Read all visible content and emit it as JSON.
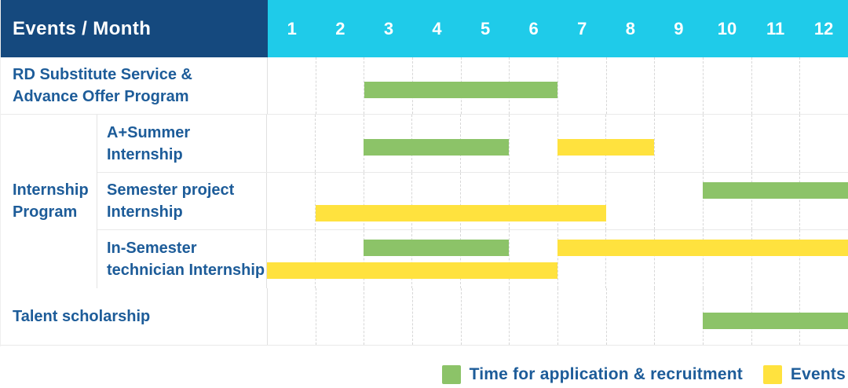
{
  "header": {
    "title": "Events / Month",
    "months": [
      "1",
      "2",
      "3",
      "4",
      "5",
      "6",
      "7",
      "8",
      "9",
      "10",
      "11",
      "12"
    ]
  },
  "colors": {
    "navy": "#15497E",
    "cyan": "#1FCBE9",
    "green": "#8CC368",
    "yellow": "#FFE23E",
    "text_blue": "#1D5C99"
  },
  "rows": {
    "rd": {
      "lines": [
        "RD Substitute Service &",
        "Advance Offer Program"
      ],
      "bars": {
        "b0": {
          "color": "green",
          "start": 3,
          "end": 6,
          "lane": "single"
        }
      }
    },
    "group_label": {
      "lines": [
        "Internship",
        "Program"
      ]
    },
    "a_summer": {
      "lines": [
        "A+Summer",
        "Internship"
      ],
      "bars": {
        "b0": {
          "color": "green",
          "start": 3,
          "end": 5,
          "lane": "single"
        },
        "b1": {
          "color": "yellow",
          "start": 7,
          "end": 8,
          "lane": "single"
        }
      }
    },
    "semester_project": {
      "lines": [
        "Semester project",
        "Internship"
      ],
      "bars": {
        "b0": {
          "color": "green",
          "start": 10,
          "end": 12,
          "lane": "top"
        },
        "b1": {
          "color": "yellow",
          "start": 2,
          "end": 7,
          "lane": "bottom"
        }
      }
    },
    "in_semester": {
      "lines": [
        "In-Semester",
        "technician Internship"
      ],
      "bars": {
        "b0": {
          "color": "green",
          "start": 3,
          "end": 5,
          "lane": "top"
        },
        "b1": {
          "color": "yellow",
          "start": 7,
          "end": 12,
          "lane": "top"
        },
        "b2": {
          "color": "yellow",
          "start": 1,
          "end": 6,
          "lane": "bottom"
        }
      }
    },
    "talent": {
      "lines": [
        "Talent scholarship"
      ],
      "bars": {
        "b0": {
          "color": "green",
          "start": 10,
          "end": 12,
          "lane": "single"
        }
      }
    }
  },
  "legend": {
    "application": {
      "label": "Time for application & recruitment",
      "color_key": "green"
    },
    "events": {
      "label": "Events",
      "color_key": "yellow"
    }
  },
  "chart_data": {
    "type": "table",
    "subtype": "gantt",
    "title": "Events / Month",
    "x": {
      "label": "Month",
      "ticks": [
        1,
        2,
        3,
        4,
        5,
        6,
        7,
        8,
        9,
        10,
        11,
        12
      ]
    },
    "legend_entries": [
      "Time for application & recruitment",
      "Events"
    ],
    "legend_position": "bottom-right",
    "grid": true,
    "rows": [
      {
        "group": null,
        "event": "RD Substitute Service & Advance Offer Program",
        "spans": [
          {
            "series": "Time for application & recruitment",
            "start_month": 3,
            "end_month": 6
          }
        ]
      },
      {
        "group": "Internship Program",
        "event": "A+Summer Internship",
        "spans": [
          {
            "series": "Time for application & recruitment",
            "start_month": 3,
            "end_month": 5
          },
          {
            "series": "Events",
            "start_month": 7,
            "end_month": 8
          }
        ]
      },
      {
        "group": "Internship Program",
        "event": "Semester project Internship",
        "spans": [
          {
            "series": "Time for application & recruitment",
            "start_month": 10,
            "end_month": 12
          },
          {
            "series": "Events",
            "start_month": 2,
            "end_month": 7
          }
        ]
      },
      {
        "group": "Internship Program",
        "event": "In-Semester technician Internship",
        "spans": [
          {
            "series": "Time for application & recruitment",
            "start_month": 3,
            "end_month": 5
          },
          {
            "series": "Events",
            "start_month": 7,
            "end_month": 12
          },
          {
            "series": "Events",
            "start_month": 1,
            "end_month": 6
          }
        ]
      },
      {
        "group": null,
        "event": "Talent scholarship",
        "spans": [
          {
            "series": "Time for application & recruitment",
            "start_month": 10,
            "end_month": 12
          }
        ]
      }
    ]
  }
}
